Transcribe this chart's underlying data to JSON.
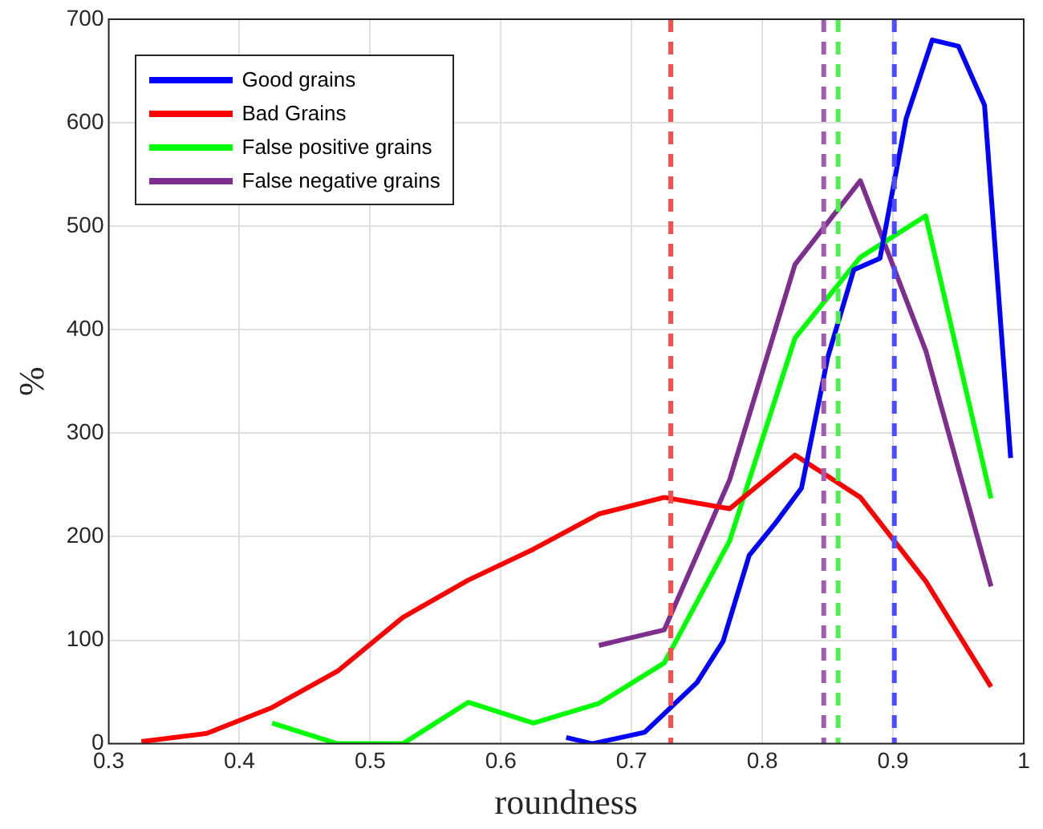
{
  "chart_data": {
    "type": "line",
    "xlabel": "roundness",
    "ylabel": "%",
    "xlim": [
      0.3,
      1
    ],
    "xticks": [
      0.3,
      0.4,
      0.5,
      0.6,
      0.7,
      0.8,
      0.9,
      1
    ],
    "ylim": [
      0,
      700
    ],
    "yticks": [
      0,
      100,
      200,
      300,
      400,
      500,
      600,
      700
    ],
    "grid": true,
    "legend": "top left",
    "marker": "none",
    "line_style": "solid",
    "series": [
      {
        "name": "Good grains",
        "color": "#0000ff",
        "x": [
          0.65,
          0.67,
          0.71,
          0.75,
          0.77,
          0.79,
          0.81,
          0.83,
          0.85,
          0.87,
          0.89,
          0.91,
          0.93,
          0.95,
          0.97,
          0.99
        ],
        "values": [
          6,
          0,
          11,
          59,
          99,
          182,
          213,
          247,
          373,
          458,
          469,
          604,
          680,
          674,
          617,
          276
        ]
      },
      {
        "name": "Bad Grains",
        "color": "#ff0000",
        "x": [
          0.325,
          0.375,
          0.425,
          0.475,
          0.525,
          0.575,
          0.625,
          0.675,
          0.725,
          0.775,
          0.825,
          0.875,
          0.925,
          0.975
        ],
        "values": [
          2,
          10,
          35,
          70,
          122,
          158,
          188,
          222,
          238,
          227,
          279,
          238,
          157,
          55
        ]
      },
      {
        "name": "False positive grains",
        "color": "#00ff00",
        "x": [
          0.425,
          0.475,
          0.525,
          0.575,
          0.625,
          0.675,
          0.725,
          0.775,
          0.825,
          0.875,
          0.925,
          0.975
        ],
        "values": [
          20,
          0,
          0,
          40,
          20,
          39,
          78,
          196,
          392,
          470,
          510,
          237
        ]
      },
      {
        "name": "False negative grains",
        "color": "#7e2f8e",
        "x": [
          0.675,
          0.725,
          0.775,
          0.825,
          0.875,
          0.925,
          0.975
        ],
        "values": [
          95,
          110,
          255,
          463,
          544,
          380,
          152
        ]
      }
    ],
    "ref_lines": [
      {
        "axis": "x",
        "value": 0.73,
        "color": "#ff4d4d",
        "line_style": "dashed"
      },
      {
        "axis": "x",
        "value": 0.847,
        "color": "#a05cb0",
        "line_style": "dashed"
      },
      {
        "axis": "x",
        "value": 0.858,
        "color": "#4df04d",
        "line_style": "dashed"
      },
      {
        "axis": "x",
        "value": 0.901,
        "color": "#4d4dff",
        "line_style": "dashed"
      }
    ]
  }
}
